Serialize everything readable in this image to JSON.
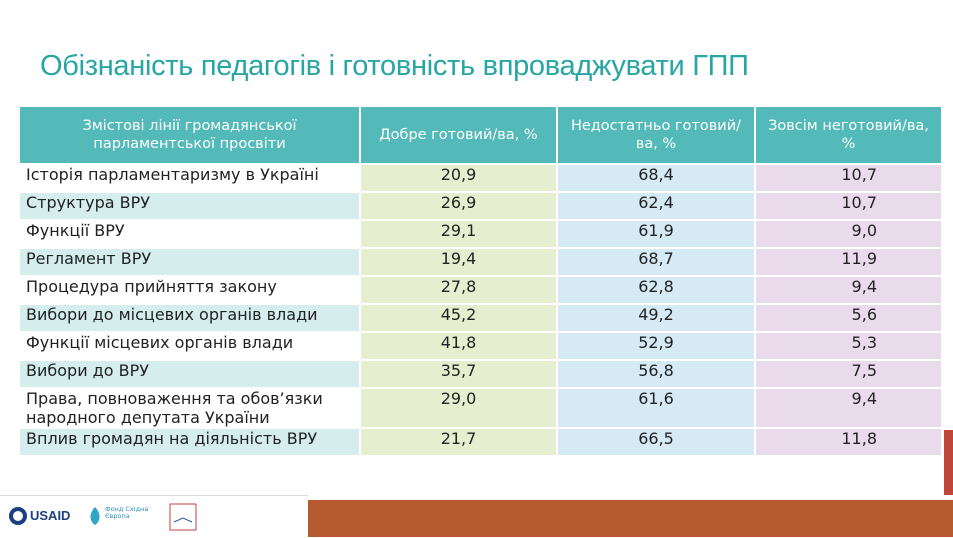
{
  "title": "Обізнаність педагогів і готовність впроваджувати ГПП",
  "table": {
    "header": [
      "Змістові лінії громадянської парламентської просвіти",
      "Добре готовий/ва, %",
      "Недостатньо готовий/ва, %",
      "Зовсім неготовий/ва, %"
    ],
    "rows": [
      [
        "Історія парламентаризму в Україні",
        "20,9",
        "68,4",
        "10,7"
      ],
      [
        "Структура ВРУ",
        "26,9",
        "62,4",
        "10,7"
      ],
      [
        "Функції ВРУ",
        "29,1",
        "61,9",
        "9,0"
      ],
      [
        "Регламент ВРУ",
        "19,4",
        "68,7",
        "11,9"
      ],
      [
        "Процедура прийняття закону",
        "27,8",
        "62,8",
        "9,4"
      ],
      [
        "Вибори до місцевих органів влади",
        "45,2",
        "49,2",
        "5,6"
      ],
      [
        "Функції місцевих органів влади",
        "41,8",
        "52,9",
        "5,3"
      ],
      [
        "Вибори до ВРУ",
        "35,7",
        "56,8",
        "7,5"
      ],
      [
        "Права, повноваження та обов’язки народного депутата України",
        "29,0",
        "61,6",
        "9,4"
      ],
      [
        "Вплив громадян на діяльність ВРУ",
        "21,7",
        "66,5",
        "11,8"
      ]
    ]
  },
  "footer": {
    "logo1": "USAID",
    "logo2": "Фонд Східна Європа"
  }
}
